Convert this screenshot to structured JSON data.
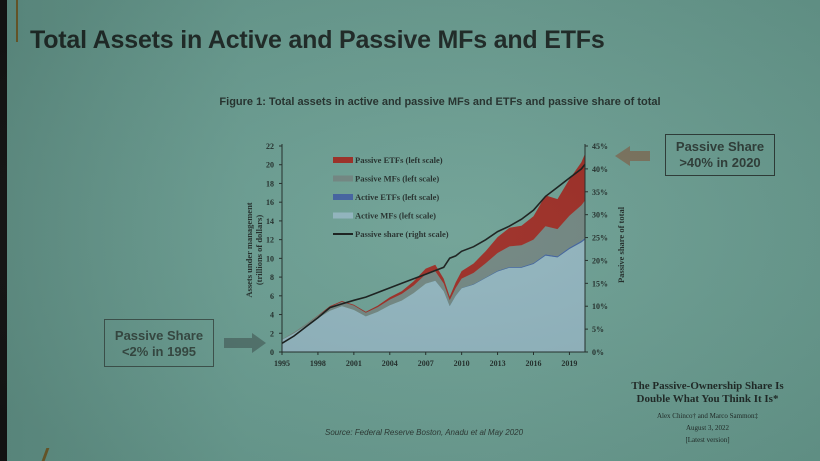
{
  "slide": {
    "title": "Total Assets in Active and Passive MFs and ETFs",
    "figure_title": "Figure 1: Total assets in active and passive MFs and ETFs and passive share of total",
    "callout_right": {
      "line1": "Passive Share",
      "line2": ">40% in 2020"
    },
    "callout_left": {
      "line1": "Passive Share",
      "line2": "<2% in 1995"
    },
    "source": "Source: Federal Reserve Boston, Anadu et al May 2020",
    "paper": {
      "title_line1": "The Passive-Ownership Share Is",
      "title_line2": "Double What You Think It Is*",
      "authors": "Alex Chinco† and Marco Sammon‡",
      "date": "August 3, 2022",
      "version": "[Latest version]"
    }
  },
  "chart_data": {
    "type": "area",
    "title": "Figure 1: Total assets in active and passive MFs and ETFs and passive share of total",
    "xlabel": "",
    "ylabel": "Assets under management (trillions of dollars)",
    "y2label": "Passive share of total",
    "x_ticks": [
      "1995",
      "1998",
      "2001",
      "2004",
      "2007",
      "2010",
      "2013",
      "2016",
      "2019"
    ],
    "y_ticks": [
      0,
      2,
      4,
      6,
      8,
      10,
      12,
      14,
      16,
      18,
      20,
      22
    ],
    "y2_ticks": [
      "0%",
      "5%",
      "10%",
      "15%",
      "20%",
      "25%",
      "30%",
      "35%",
      "40%",
      "45%"
    ],
    "ylim": [
      0,
      22
    ],
    "y2lim": [
      0,
      45
    ],
    "xlim": [
      1995,
      2020.3
    ],
    "legend": [
      {
        "label": "Passive ETFs (left scale)",
        "color": "#9b2a22"
      },
      {
        "label": "Passive MFs (left scale)",
        "color": "#6f847f"
      },
      {
        "label": "Active ETFs (left scale)",
        "color": "#3f5f9e"
      },
      {
        "label": "Active MFs (left scale)",
        "color": "#8fb3bd"
      },
      {
        "label": "Passive share (right scale)",
        "color": "#141a18"
      }
    ],
    "legend_position": "upper-left inside",
    "grid": false,
    "x": [
      1995,
      1996,
      1997,
      1998,
      1999,
      2000,
      2001,
      2002,
      2003,
      2004,
      2005,
      2006,
      2007,
      2007.8,
      2008.5,
      2009,
      2009.5,
      2010,
      2011,
      2012,
      2013,
      2014,
      2015,
      2016,
      2017,
      2018,
      2019,
      2020,
      2020.3
    ],
    "series": [
      {
        "name": "Active MFs (left scale)",
        "values": [
          1.3,
          2.0,
          2.8,
          3.6,
          4.4,
          4.9,
          4.5,
          3.8,
          4.3,
          5.0,
          5.5,
          6.3,
          7.3,
          7.6,
          6.5,
          4.9,
          6.0,
          6.8,
          7.2,
          7.9,
          8.6,
          9.0,
          9.0,
          9.4,
          10.3,
          10.1,
          11.0,
          11.7,
          12.0
        ]
      },
      {
        "name": "Active ETFs (left scale)",
        "values": [
          0,
          0,
          0,
          0,
          0,
          0,
          0,
          0,
          0,
          0,
          0,
          0,
          0.01,
          0.02,
          0.02,
          0.02,
          0.03,
          0.04,
          0.05,
          0.06,
          0.07,
          0.08,
          0.09,
          0.1,
          0.12,
          0.13,
          0.15,
          0.17,
          0.18
        ]
      },
      {
        "name": "Passive MFs (left scale)",
        "values": [
          0.05,
          0.08,
          0.15,
          0.25,
          0.4,
          0.45,
          0.45,
          0.4,
          0.5,
          0.6,
          0.7,
          0.8,
          1.0,
          1.0,
          0.8,
          0.6,
          0.8,
          1.0,
          1.2,
          1.5,
          1.9,
          2.2,
          2.3,
          2.5,
          3.0,
          2.9,
          3.4,
          3.8,
          4.0
        ]
      },
      {
        "name": "Passive ETFs (left scale)",
        "values": [
          0.0,
          0.01,
          0.02,
          0.05,
          0.1,
          0.1,
          0.1,
          0.1,
          0.15,
          0.25,
          0.3,
          0.45,
          0.6,
          0.7,
          0.5,
          0.4,
          0.6,
          0.8,
          1.0,
          1.3,
          1.7,
          2.0,
          2.1,
          2.5,
          3.3,
          3.2,
          3.9,
          4.6,
          5.0
        ]
      },
      {
        "name": "Passive share (right scale)",
        "values": [
          1.9,
          3.5,
          5.5,
          7.5,
          9.7,
          10.5,
          11.3,
          12.0,
          13.0,
          14.0,
          15.0,
          16.0,
          17.0,
          17.8,
          18.5,
          20.5,
          21.0,
          22.0,
          23.0,
          24.5,
          26.3,
          27.5,
          29.0,
          31.0,
          34.0,
          36.0,
          38.0,
          40.0,
          41.0
        ]
      }
    ]
  }
}
